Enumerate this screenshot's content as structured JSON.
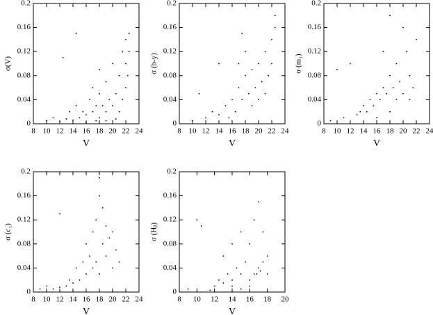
{
  "chart_data": [
    {
      "type": "scatter",
      "xlabel": "V",
      "ylabel": "σ(V)",
      "color": "#000000",
      "xlim": [
        8,
        24
      ],
      "ylim": [
        0,
        0.2
      ],
      "xticks": [
        8,
        10,
        12,
        14,
        16,
        18,
        20,
        22,
        24
      ],
      "yticks": [
        0,
        0.04,
        0.08,
        0.12,
        0.16,
        0.2
      ],
      "x": [
        10,
        11,
        12,
        13,
        13.5,
        14,
        14.5,
        15,
        15.5,
        16,
        16.5,
        17,
        17,
        17.5,
        18,
        18,
        18.5,
        19,
        19,
        19.5,
        20,
        20,
        20.5,
        21,
        21,
        21.5,
        21.5,
        22,
        22,
        22,
        22.3,
        22.5,
        22.5,
        18,
        19,
        16,
        12.5,
        14.5,
        17.5,
        20.5
      ],
      "values": [
        0.005,
        0.01,
        0.004,
        0.008,
        0.02,
        0.006,
        0.03,
        0.01,
        0.02,
        0.015,
        0.04,
        0.02,
        0.06,
        0.03,
        0.05,
        0.09,
        0.03,
        0.02,
        0.07,
        0.04,
        0.03,
        0.1,
        0.05,
        0.02,
        0.08,
        0.04,
        0.12,
        0.06,
        0.1,
        0.14,
        0.08,
        0.12,
        0.15,
        0.01,
        0.005,
        0.002,
        0.11,
        0.15,
        0.005,
        0.008
      ]
    },
    {
      "type": "scatter",
      "xlabel": "V",
      "ylabel": "σ (b-y)",
      "color": "#000000",
      "xlim": [
        8,
        24
      ],
      "ylim": [
        0,
        0.2
      ],
      "xticks": [
        8,
        10,
        12,
        14,
        16,
        18,
        20,
        22,
        24
      ],
      "yticks": [
        0,
        0.04,
        0.08,
        0.12,
        0.16,
        0.2
      ],
      "x": [
        10,
        12,
        13,
        14,
        15,
        15.5,
        16,
        16.5,
        17,
        17,
        17.5,
        18,
        18,
        18.5,
        19,
        19,
        19.5,
        20,
        20,
        20.5,
        21,
        21,
        21.5,
        22,
        22,
        22.5,
        22.5,
        17.5,
        14,
        11
      ],
      "values": [
        0.005,
        0.01,
        0.02,
        0.015,
        0.03,
        0.01,
        0.04,
        0.02,
        0.06,
        0.1,
        0.04,
        0.08,
        0.12,
        0.05,
        0.03,
        0.09,
        0.06,
        0.04,
        0.1,
        0.07,
        0.05,
        0.12,
        0.08,
        0.1,
        0.14,
        0.16,
        0.18,
        0.15,
        0.1,
        0.05
      ]
    },
    {
      "type": "scatter",
      "xlabel": "V",
      "ylabel": "σ (m₁)",
      "color": "#000000",
      "xlim": [
        8,
        24
      ],
      "ylim": [
        0,
        0.2
      ],
      "xticks": [
        8,
        10,
        12,
        14,
        16,
        18,
        20,
        22,
        24
      ],
      "yticks": [
        0,
        0.04,
        0.08,
        0.12,
        0.16,
        0.2
      ],
      "x": [
        9,
        10,
        11,
        12,
        13,
        13.5,
        14,
        14.5,
        15,
        15.5,
        16,
        16.5,
        17,
        17,
        17.5,
        18,
        18,
        18.5,
        19,
        19,
        19.5,
        20,
        20.5,
        21,
        21,
        21.5,
        22,
        16,
        18,
        20
      ],
      "values": [
        0.005,
        0.09,
        0.01,
        0.1,
        0.015,
        0.02,
        0.03,
        0.02,
        0.04,
        0.03,
        0.05,
        0.04,
        0.06,
        0.12,
        0.05,
        0.08,
        0.18,
        0.06,
        0.04,
        0.1,
        0.07,
        0.05,
        0.12,
        0.04,
        0.08,
        0.06,
        0.14,
        0.01,
        0.02,
        0.16
      ]
    },
    {
      "type": "scatter",
      "xlabel": "V",
      "ylabel": "σ (c₁)",
      "color": "#000000",
      "xlim": [
        8,
        24
      ],
      "ylim": [
        0,
        0.2
      ],
      "xticks": [
        8,
        10,
        12,
        14,
        16,
        18,
        20,
        22,
        24
      ],
      "yticks": [
        0,
        0.04,
        0.08,
        0.12,
        0.16,
        0.2
      ],
      "x": [
        9,
        10,
        11,
        12,
        13,
        13.5,
        14,
        14.5,
        15,
        15.5,
        16,
        16.5,
        17,
        17,
        17.5,
        17.5,
        18,
        18,
        18.5,
        18.5,
        19,
        19,
        19.5,
        20,
        20,
        20.5,
        21,
        12,
        16,
        18
      ],
      "values": [
        0.005,
        0.01,
        0.005,
        0.008,
        0.01,
        0.02,
        0.015,
        0.04,
        0.02,
        0.05,
        0.03,
        0.06,
        0.04,
        0.1,
        0.05,
        0.12,
        0.03,
        0.16,
        0.08,
        0.14,
        0.06,
        0.11,
        0.09,
        0.04,
        0.1,
        0.07,
        0.05,
        0.13,
        0.08,
        0.19
      ]
    },
    {
      "type": "scatter",
      "xlabel": "V",
      "ylabel": "σ (Hᵦ)",
      "color": "#000000",
      "xlim": [
        8,
        20
      ],
      "ylim": [
        0,
        0.2
      ],
      "xticks": [
        8,
        10,
        12,
        14,
        16,
        18,
        20
      ],
      "yticks": [
        0,
        0.04,
        0.08,
        0.12,
        0.16,
        0.2
      ],
      "x": [
        9,
        10,
        10.5,
        11.5,
        12,
        12.5,
        13,
        13,
        13.5,
        14,
        14,
        14.5,
        15,
        15,
        15.5,
        16,
        16,
        16.5,
        16.5,
        17,
        17,
        17.5,
        17.5,
        18,
        18,
        16,
        15,
        14,
        17.2,
        16.8
      ],
      "values": [
        0.005,
        0.12,
        0.11,
        0.003,
        0.01,
        0.02,
        0.015,
        0.06,
        0.03,
        0.02,
        0.08,
        0.04,
        0.03,
        0.1,
        0.05,
        0.02,
        0.08,
        0.03,
        0.12,
        0.04,
        0.15,
        0.05,
        0.1,
        0.03,
        0.06,
        0.01,
        0.005,
        0.01,
        0.035,
        0.03
      ]
    }
  ]
}
